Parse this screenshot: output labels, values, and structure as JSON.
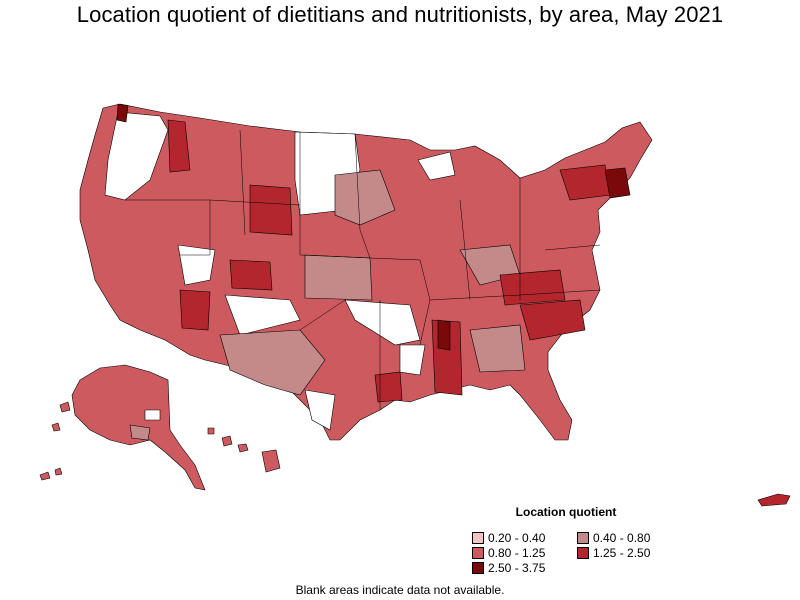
{
  "title": "Location quotient of dietitians and nutritionists, by area, May 2021",
  "legend": {
    "title": "Location quotient",
    "items": [
      {
        "label": "0.20 - 0.40",
        "color": "#f2c4c4"
      },
      {
        "label": "0.40 - 0.80",
        "color": "#c48a8a"
      },
      {
        "label": "0.80 - 1.25",
        "color": "#cd5a5f"
      },
      {
        "label": "1.25 - 2.50",
        "color": "#b4262d"
      },
      {
        "label": "2.50 - 3.75",
        "color": "#7a0a0a"
      }
    ]
  },
  "footnote": "Blank areas indicate data not available.",
  "colors": {
    "blank": "#ffffff",
    "border": "#000000"
  }
}
